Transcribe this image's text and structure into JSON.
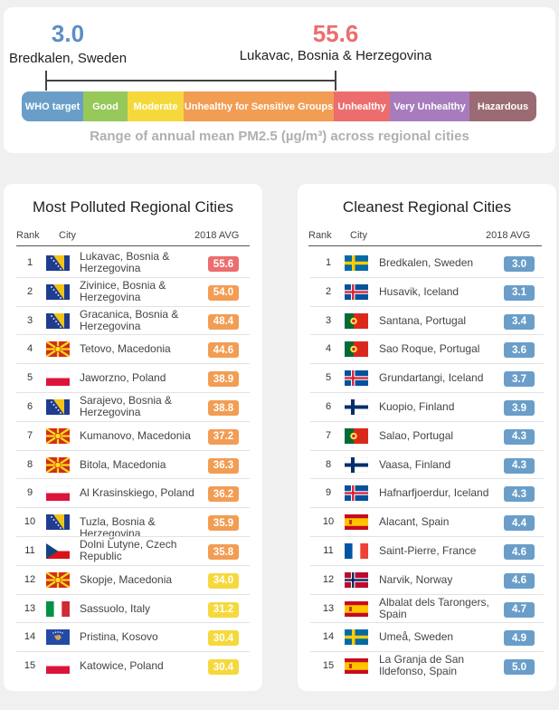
{
  "summary": {
    "low_value": "3.0",
    "low_city": "Bredkalen, Sweden",
    "high_value": "55.6",
    "high_city": "Lukavac, Bosnia & Herzegovina",
    "caption": "Range of annual mean PM2.5 (µg/m³) across regional cities"
  },
  "scale": [
    {
      "label": "WHO target",
      "color": "#6a9ec9"
    },
    {
      "label": "Good",
      "color": "#96c85a"
    },
    {
      "label": "Moderate",
      "color": "#f5d93c"
    },
    {
      "label": "Unhealthy for Sensitive Groups",
      "color": "#f29d54"
    },
    {
      "label": "Unhealthy",
      "color": "#ec6d6d"
    },
    {
      "label": "Very Unhealthy",
      "color": "#a77cbd"
    },
    {
      "label": "Hazardous",
      "color": "#9a6b73"
    }
  ],
  "polluted": {
    "title": "Most Polluted Regional Cities",
    "headers": {
      "rank": "Rank",
      "city": "City",
      "avg": "2018 AVG"
    },
    "rows": [
      {
        "rank": "1",
        "city": "Lukavac, Bosnia & Herzegovina",
        "value": "55.6",
        "color": "#ec6d6d",
        "flag": "bosnia-flag-icon"
      },
      {
        "rank": "2",
        "city": "Zivinice, Bosnia & Herzegovina",
        "value": "54.0",
        "color": "#f29d54",
        "flag": "bosnia-flag-icon"
      },
      {
        "rank": "3",
        "city": "Gracanica, Bosnia & Herzegovina",
        "value": "48.4",
        "color": "#f29d54",
        "flag": "bosnia-flag-icon"
      },
      {
        "rank": "4",
        "city": "Tetovo, Macedonia",
        "value": "44.6",
        "color": "#f29d54",
        "flag": "macedonia-flag-icon"
      },
      {
        "rank": "5",
        "city": "Jaworzno, Poland",
        "value": "38.9",
        "color": "#f29d54",
        "flag": "poland-flag-icon"
      },
      {
        "rank": "6",
        "city": "Sarajevo, Bosnia & Herzegovina",
        "value": "38.8",
        "color": "#f29d54",
        "flag": "bosnia-flag-icon"
      },
      {
        "rank": "7",
        "city": "Kumanovo, Macedonia",
        "value": "37.2",
        "color": "#f29d54",
        "flag": "macedonia-flag-icon"
      },
      {
        "rank": "8",
        "city": "Bitola, Macedonia",
        "value": "36.3",
        "color": "#f29d54",
        "flag": "macedonia-flag-icon"
      },
      {
        "rank": "9",
        "city": "Al Krasinskiego, Poland",
        "value": "36.2",
        "color": "#f29d54",
        "flag": "poland-flag-icon"
      },
      {
        "rank": "10",
        "city": "Tuzla, Bosnia & Herzegovina",
        "value": "35.9",
        "color": "#f29d54",
        "flag": "bosnia-flag-icon"
      },
      {
        "rank": "11",
        "city": "Dolni Lutyne, Czech Republic",
        "value": "35.8",
        "color": "#f29d54",
        "flag": "czech-flag-icon"
      },
      {
        "rank": "12",
        "city": "Skopje, Macedonia",
        "value": "34.0",
        "color": "#f5d93c",
        "flag": "macedonia-flag-icon"
      },
      {
        "rank": "13",
        "city": "Sassuolo, Italy",
        "value": "31.2",
        "color": "#f5d93c",
        "flag": "italy-flag-icon"
      },
      {
        "rank": "14",
        "city": "Pristina, Kosovo",
        "value": "30.4",
        "color": "#f5d93c",
        "flag": "kosovo-flag-icon"
      },
      {
        "rank": "15",
        "city": "Katowice, Poland",
        "value": "30.4",
        "color": "#f5d93c",
        "flag": "poland-flag-icon"
      }
    ]
  },
  "cleanest": {
    "title": "Cleanest Regional Cities",
    "headers": {
      "rank": "Rank",
      "city": "City",
      "avg": "2018 AVG"
    },
    "rows": [
      {
        "rank": "1",
        "city": "Bredkalen, Sweden",
        "value": "3.0",
        "color": "#6a9ec9",
        "flag": "sweden-flag-icon"
      },
      {
        "rank": "2",
        "city": "Husavik, Iceland",
        "value": "3.1",
        "color": "#6a9ec9",
        "flag": "iceland-flag-icon"
      },
      {
        "rank": "3",
        "city": "Santana, Portugal",
        "value": "3.4",
        "color": "#6a9ec9",
        "flag": "portugal-flag-icon"
      },
      {
        "rank": "4",
        "city": "Sao Roque, Portugal",
        "value": "3.6",
        "color": "#6a9ec9",
        "flag": "portugal-flag-icon"
      },
      {
        "rank": "5",
        "city": "Grundartangi, Iceland",
        "value": "3.7",
        "color": "#6a9ec9",
        "flag": "iceland-flag-icon"
      },
      {
        "rank": "6",
        "city": "Kuopio, Finland",
        "value": "3.9",
        "color": "#6a9ec9",
        "flag": "finland-flag-icon"
      },
      {
        "rank": "7",
        "city": "Salao, Portugal",
        "value": "4.3",
        "color": "#6a9ec9",
        "flag": "portugal-flag-icon"
      },
      {
        "rank": "8",
        "city": "Vaasa, Finland",
        "value": "4.3",
        "color": "#6a9ec9",
        "flag": "finland-flag-icon"
      },
      {
        "rank": "9",
        "city": "Hafnarfjoerdur, Iceland",
        "value": "4.3",
        "color": "#6a9ec9",
        "flag": "iceland-flag-icon"
      },
      {
        "rank": "10",
        "city": "Alacant, Spain",
        "value": "4.4",
        "color": "#6a9ec9",
        "flag": "spain-flag-icon"
      },
      {
        "rank": "11",
        "city": "Saint-Pierre, France",
        "value": "4.6",
        "color": "#6a9ec9",
        "flag": "france-flag-icon"
      },
      {
        "rank": "12",
        "city": "Narvik, Norway",
        "value": "4.6",
        "color": "#6a9ec9",
        "flag": "norway-flag-icon"
      },
      {
        "rank": "13",
        "city": "Albalat dels Tarongers, Spain",
        "value": "4.7",
        "color": "#6a9ec9",
        "flag": "spain-flag-icon"
      },
      {
        "rank": "14",
        "city": "Umeå, Sweden",
        "value": "4.9",
        "color": "#6a9ec9",
        "flag": "sweden-flag-icon"
      },
      {
        "rank": "15",
        "city": "La Granja de San Ildefonso, Spain",
        "value": "5.0",
        "color": "#6a9ec9",
        "flag": "spain-flag-icon"
      }
    ]
  }
}
